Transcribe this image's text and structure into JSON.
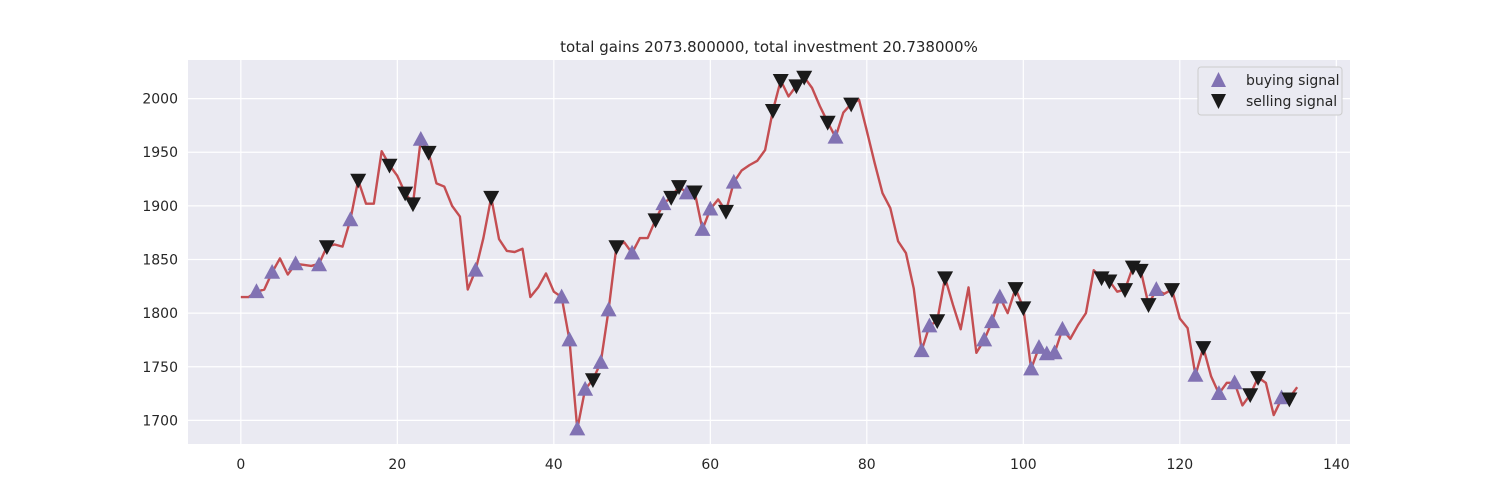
{
  "chart_data": {
    "type": "line",
    "title": "total gains 2073.800000, total investment 20.738000%",
    "xlabel": "",
    "ylabel": "",
    "xlim": [
      -6.75,
      141.75
    ],
    "ylim": [
      1678,
      2036
    ],
    "x_ticks": [
      0,
      20,
      40,
      60,
      80,
      100,
      120,
      140
    ],
    "y_ticks": [
      1700,
      1750,
      1800,
      1850,
      1900,
      1950,
      2000
    ],
    "grid": true,
    "legend_position": "top-right",
    "colors": {
      "background": "#eaeaf2",
      "grid": "#ffffff",
      "line": "#c44e52",
      "buy": "#8172b3",
      "sell": "#1a1a1a"
    },
    "close": [
      1815,
      1815,
      1820,
      1822,
      1838,
      1851,
      1836,
      1846,
      1845,
      1844,
      1846,
      1862,
      1864,
      1862,
      1887,
      1924,
      1902,
      1902,
      1951,
      1938,
      1928,
      1912,
      1902,
      1962,
      1950,
      1921,
      1918,
      1900,
      1890,
      1822,
      1840,
      1870,
      1908,
      1869,
      1858,
      1857,
      1860,
      1815,
      1824,
      1837,
      1820,
      1815,
      1775,
      1692,
      1729,
      1738,
      1754,
      1803,
      1862,
      1866,
      1856,
      1870,
      1870,
      1887,
      1902,
      1908,
      1918,
      1912,
      1913,
      1878,
      1897,
      1906,
      1895,
      1922,
      1933,
      1938,
      1942,
      1952,
      1989,
      2017,
      2002,
      2012,
      2020,
      2010,
      1993,
      1978,
      1964,
      1987,
      1995,
      1999,
      1970,
      1940,
      1912,
      1898,
      1867,
      1856,
      1823,
      1765,
      1788,
      1793,
      1833,
      1808,
      1785,
      1824,
      1763,
      1775,
      1792,
      1815,
      1800,
      1823,
      1805,
      1748,
      1768,
      1762,
      1763,
      1785,
      1776,
      1789,
      1800,
      1840,
      1833,
      1830,
      1820,
      1822,
      1843,
      1840,
      1808,
      1822,
      1818,
      1822,
      1795,
      1786,
      1742,
      1768,
      1741,
      1725,
      1735,
      1735,
      1714,
      1724,
      1740,
      1735,
      1705,
      1720,
      1721,
      1731
    ],
    "series": [
      {
        "name": "buying signal",
        "marker": "triangle-up",
        "x": [
          2,
          4,
          7,
          10,
          14,
          23,
          30,
          41,
          42,
          43,
          44,
          46,
          47,
          50,
          54,
          57,
          59,
          60,
          63,
          76,
          87,
          88,
          95,
          96,
          97,
          101,
          102,
          103,
          104,
          105,
          117,
          122,
          125,
          127,
          133
        ],
        "y": [
          1820,
          1838,
          1846,
          1845,
          1887,
          1962,
          1840,
          1815,
          1775,
          1692,
          1729,
          1754,
          1803,
          1856,
          1902,
          1912,
          1878,
          1897,
          1922,
          1964,
          1765,
          1788,
          1775,
          1792,
          1815,
          1748,
          1768,
          1762,
          1763,
          1785,
          1822,
          1742,
          1725,
          1735,
          1721
        ]
      },
      {
        "name": "selling signal",
        "marker": "triangle-down",
        "x": [
          11,
          15,
          19,
          21,
          22,
          24,
          32,
          45,
          48,
          53,
          55,
          56,
          58,
          62,
          68,
          69,
          71,
          72,
          75,
          78,
          89,
          90,
          99,
          100,
          110,
          111,
          113,
          114,
          115,
          116,
          119,
          123,
          129,
          130,
          134
        ],
        "y": [
          1862,
          1924,
          1938,
          1912,
          1902,
          1950,
          1908,
          1738,
          1862,
          1887,
          1908,
          1918,
          1913,
          1895,
          1989,
          2017,
          2012,
          2020,
          1978,
          1995,
          1793,
          1833,
          1823,
          1805,
          1833,
          1830,
          1822,
          1843,
          1840,
          1808,
          1822,
          1768,
          1724,
          1740,
          1720
        ]
      }
    ]
  }
}
